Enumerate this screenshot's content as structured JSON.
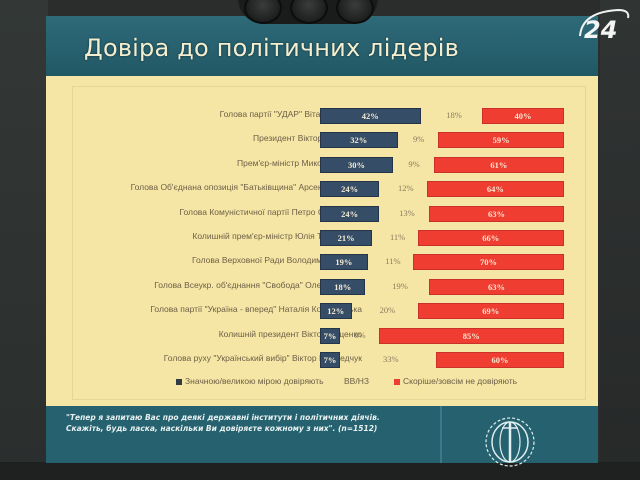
{
  "header": {
    "title": "Довіра до політичних лідерів"
  },
  "channel_logo": {
    "text": "24",
    "icon": "channel-24-logo"
  },
  "colors": {
    "trust": "#354d66",
    "distrust": "#ef3d32",
    "panel_bg": "#f5e6a6",
    "slide_bg": "#26616f"
  },
  "chart_data": {
    "type": "bar",
    "stacked": true,
    "orientation": "horizontal",
    "title": "Довіра до політичних лідерів",
    "categories": [
      "Голова партії \"УДАР\" Віталій Кличко",
      "Президент Віктор Янукович",
      "Прем'єр-міністр Микола Азаров",
      "Голова Об'єднана опозиція \"Батьківщина\" Арсеній Яценюк",
      "Голова Комуністичної партії Петро Симоненко",
      "Колишній прем'єр-міністр Юлія Тимошенко",
      "Голова Верховної Ради Володимир Литвин",
      "Голова Всеукр. об'єднання \"Свобода\" Олег Тягнибок",
      "Голова партії \"Україна - вперед\" Наталія Королевська",
      "Колишній президент Віктор Ющенко",
      "Голова руху \"Український вибір\" Віктор Медведчук"
    ],
    "series": [
      {
        "name": "Значною/великою мірою довіряють",
        "values": [
          42,
          32,
          30,
          24,
          24,
          21,
          19,
          18,
          12,
          7,
          7
        ]
      },
      {
        "name": "ВВ/НЗ",
        "values": [
          18,
          9,
          9,
          12,
          13,
          11,
          11,
          19,
          20,
          8,
          33
        ]
      },
      {
        "name": "Скоріше/зовсім не довіряють",
        "values": [
          40,
          59,
          61,
          64,
          63,
          66,
          70,
          63,
          69,
          85,
          60
        ]
      }
    ],
    "unit": "%",
    "legend_position": "bottom",
    "grid": false
  },
  "rows": [
    {
      "label": "Голова партії \"УДАР\" Віталій Кличко",
      "trust": "42%",
      "dk": "18%",
      "distrust": "40%"
    },
    {
      "label": "Президент Віктор Янукович",
      "trust": "32%",
      "dk": "9%",
      "distrust": "59%"
    },
    {
      "label": "Прем'єр-міністр Микола Азаров",
      "trust": "30%",
      "dk": "9%",
      "distrust": "61%"
    },
    {
      "label": "Голова Об'єднана опозиція \"Батьківщина\" Арсеній Яценюк",
      "trust": "24%",
      "dk": "12%",
      "distrust": "64%"
    },
    {
      "label": "Голова Комуністичної партії Петро Симоненко",
      "trust": "24%",
      "dk": "13%",
      "distrust": "63%"
    },
    {
      "label": "Колишній прем'єр-міністр Юлія Тимошенко",
      "trust": "21%",
      "dk": "11%",
      "distrust": "66%"
    },
    {
      "label": "Голова Верховної Ради Володимир Литвин",
      "trust": "19%",
      "dk": "11%",
      "distrust": "70%"
    },
    {
      "label": "Голова Всеукр. об'єднання \"Свобода\" Олег Тягнибок",
      "trust": "18%",
      "dk": "19%",
      "distrust": "63%"
    },
    {
      "label": "Голова партії \"Україна - вперед\" Наталія Королевська",
      "trust": "12%",
      "dk": "20%",
      "distrust": "69%"
    },
    {
      "label": "Колишній президент Віктор Ющенко",
      "trust": "7%",
      "dk": "8%",
      "distrust": "85%"
    },
    {
      "label": "Голова руху \"Український вибір\" Віктор Медведчук",
      "trust": "7%",
      "dk": "33%",
      "distrust": "60%"
    }
  ],
  "legend": {
    "trust": "Значною/великою мірою довіряють",
    "dk": "ВВ/НЗ",
    "distrust": "Скоріше/зовсім не довіряють"
  },
  "footer": {
    "question": "\"Тепер я запитаю Вас про деякі державні інститути і політичних діячів. Скажіть, будь ласка, наскільки Ви довіряєте кожному з них\". (n=1512)",
    "logo_icon": "globe-foundation-logo"
  }
}
